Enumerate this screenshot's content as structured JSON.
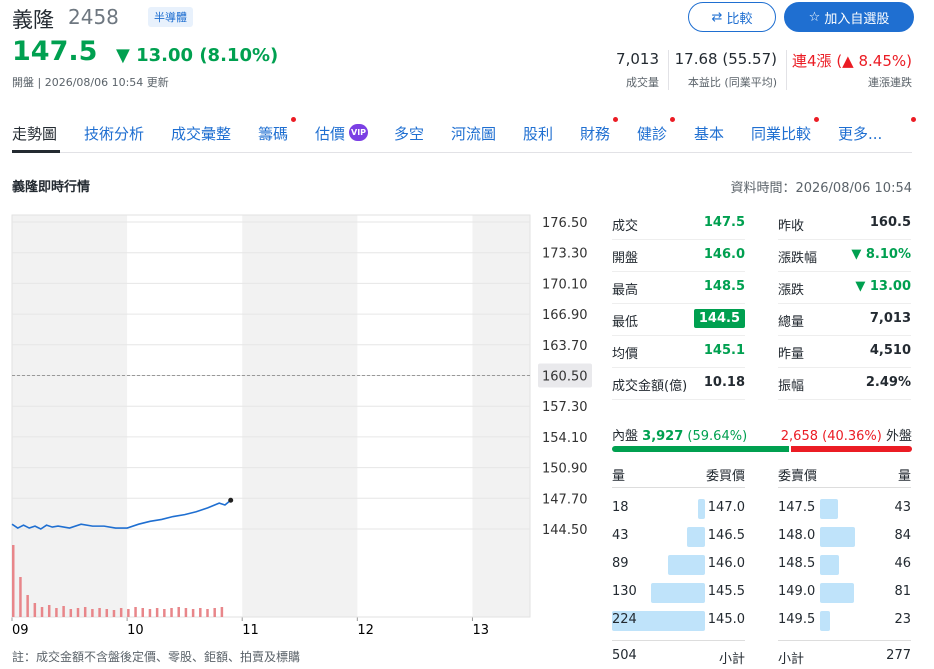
{
  "header": {
    "name": "義隆",
    "code": "2458",
    "tag": "半導體",
    "price": "147.5",
    "change": "13.00",
    "change_pct": "(8.10%)",
    "meta": "開盤 | 2026/08/06 10:54 更新",
    "stats": [
      {
        "value": "7,013",
        "label": "成交量"
      },
      {
        "value": "17.68 (55.57)",
        "label": "本益比 (同業平均)"
      },
      {
        "value": "連4漲 (▲ 8.45%)",
        "label": "連漲連跌"
      }
    ],
    "buttons": [
      "比較",
      "加入自選股"
    ]
  },
  "tabs": [
    {
      "label": "走勢圖"
    },
    {
      "label": "技術分析"
    },
    {
      "label": "成交彙整"
    },
    {
      "label": "籌碼",
      "dot": true
    },
    {
      "label": "估價",
      "badge": "VIP"
    },
    {
      "label": "多空"
    },
    {
      "label": "河流圖"
    },
    {
      "label": "股利"
    },
    {
      "label": "財務",
      "dot": true
    },
    {
      "label": "健診",
      "dot": true
    },
    {
      "label": "基本"
    },
    {
      "label": "同業比較",
      "dot": true
    },
    {
      "label": "更多...",
      "dot": true
    }
  ],
  "section": {
    "title": "義隆即時行情",
    "time": "資料時間：2026/08/06 10:54"
  },
  "chart_data": {
    "type": "line",
    "x": [
      9,
      9.05,
      9.1,
      9.15,
      9.2,
      9.25,
      9.3,
      9.35,
      9.4,
      9.5,
      9.6,
      9.7,
      9.8,
      9.9,
      10,
      10.1,
      10.2,
      10.3,
      10.4,
      10.5,
      10.6,
      10.7,
      10.8,
      10.85,
      10.9
    ],
    "series": [
      {
        "color": "#1f6fd1",
        "values": [
          145.0,
          144.6,
          144.9,
          144.6,
          144.8,
          144.5,
          144.9,
          144.7,
          144.8,
          144.6,
          145.0,
          144.8,
          144.8,
          144.6,
          144.6,
          145.0,
          145.3,
          145.5,
          145.8,
          146.0,
          146.3,
          146.7,
          147.2,
          147.0,
          147.5
        ]
      }
    ],
    "volume": {
      "color": "#e8868a",
      "x": [
        9,
        9.0625,
        9.125,
        9.1875,
        9.25,
        9.3125,
        9.375,
        9.4375,
        9.5,
        9.5625,
        9.625,
        9.6875,
        9.75,
        9.8125,
        9.875,
        9.9375,
        10,
        10.0625,
        10.125,
        10.1875,
        10.25,
        10.3125,
        10.375,
        10.4375,
        10.5,
        10.5625,
        10.625,
        10.6875,
        10.75,
        10.8125
      ],
      "values": [
        72,
        40,
        22,
        14,
        10,
        12,
        9,
        11,
        8,
        9,
        10,
        8,
        9,
        8,
        7,
        9,
        8,
        10,
        9,
        8,
        9,
        8,
        9,
        10,
        9,
        8,
        9,
        8,
        9,
        10
      ]
    },
    "xlim": [
      9,
      13.5
    ],
    "xticks": [
      {
        "value": 9,
        "label": "09"
      },
      10,
      11,
      12,
      13
    ],
    "ylim": [
      144.5,
      176.5
    ],
    "yticks": [
      {
        "value": 176.5,
        "label": "176.50"
      },
      {
        "value": 173.3,
        "label": "173.30"
      },
      {
        "value": 170.1,
        "label": "170.10"
      },
      {
        "value": 166.9,
        "label": "166.90"
      },
      {
        "value": 163.7,
        "label": "163.70"
      },
      {
        "value": 160.5,
        "label": "160.50"
      },
      {
        "value": 157.3,
        "label": "157.30"
      },
      {
        "value": 154.1,
        "label": "154.10"
      },
      {
        "value": 150.9,
        "label": "150.90"
      },
      {
        "value": 147.7,
        "label": "147.70"
      },
      {
        "value": 144.5,
        "label": "144.50"
      }
    ],
    "reference_line": 160.5,
    "grid": true
  },
  "quote": [
    [
      "成交",
      "147.5",
      "昨收",
      "160.5"
    ],
    [
      "開盤",
      "146.0",
      "漲跌幅",
      "8.10%"
    ],
    [
      "最高",
      "148.5",
      "漲跌",
      "13.00"
    ],
    [
      "最低",
      "144.5",
      "總量",
      "7,013"
    ],
    [
      "均價",
      "145.1",
      "昨量",
      "4,510"
    ],
    [
      "成交金額(億)",
      "10.18",
      "振幅",
      "2.49%"
    ]
  ],
  "inout": {
    "inner_label": "內盤",
    "inner_volume": "3,927",
    "inner_pct": 59.64,
    "inner_pct_label": "(59.64%)",
    "outer_volume": "2,658",
    "outer_pct": 40.36,
    "outer_pct_label": "(40.36%)",
    "outer_label": "外盤"
  },
  "orderbook": {
    "headers": [
      "量",
      "委買價",
      "委賣價",
      "量"
    ],
    "bids": [
      {
        "volume": 18,
        "price": "147.0"
      },
      {
        "volume": 43,
        "price": "146.5"
      },
      {
        "volume": 89,
        "price": "146.0"
      },
      {
        "volume": 130,
        "price": "145.5"
      },
      {
        "volume": 224,
        "price": "145.0"
      }
    ],
    "asks": [
      {
        "price": "147.5",
        "volume": 43
      },
      {
        "price": "148.0",
        "volume": 84
      },
      {
        "price": "148.5",
        "volume": 46
      },
      {
        "price": "149.0",
        "volume": 81
      },
      {
        "price": "149.5",
        "volume": 23
      }
    ],
    "totals": [
      "504",
      "小計",
      "小計",
      "277"
    ]
  },
  "footnote": "註：成交金額不含盤後定價、零股、鉅額、拍賣及標購"
}
